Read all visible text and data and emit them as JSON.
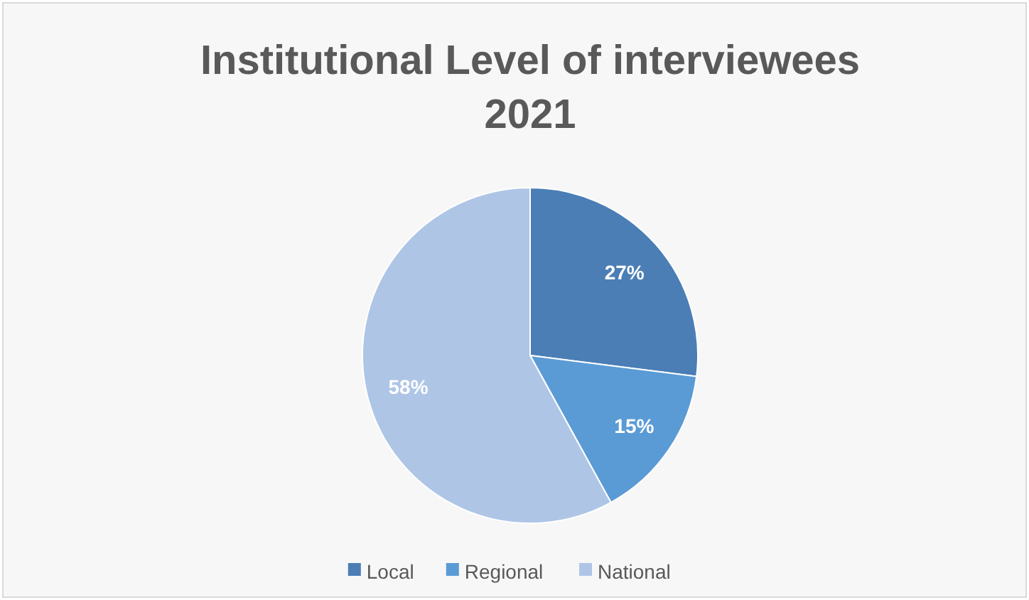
{
  "chart_data": {
    "type": "pie",
    "title": "Institutional Level of interviewees\n2021",
    "categories": [
      "Local",
      "Regional",
      "National"
    ],
    "values": [
      27,
      15,
      58
    ],
    "colors": [
      "#4a7eb5",
      "#5b9bd5",
      "#aec5e6"
    ],
    "value_labels": [
      "27%",
      "15%",
      "58%"
    ],
    "legend": "bottom"
  }
}
